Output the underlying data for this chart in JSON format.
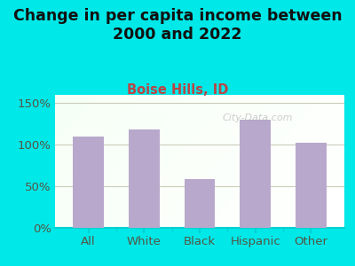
{
  "title": "Change in per capita income between\n2000 and 2022",
  "subtitle": "Boise Hills, ID",
  "categories": [
    "All",
    "White",
    "Black",
    "Hispanic",
    "Other"
  ],
  "values": [
    109,
    118,
    58,
    130,
    102
  ],
  "bar_color": "#b8a8cc",
  "title_fontsize": 12.5,
  "subtitle_fontsize": 10.5,
  "subtitle_color": "#bb4444",
  "title_color": "#111111",
  "tick_label_fontsize": 9.5,
  "ylim": [
    0,
    160
  ],
  "yticks": [
    0,
    50,
    100,
    150
  ],
  "ytick_labels": [
    "0%",
    "50%",
    "100%",
    "150%"
  ],
  "bg_outer": "#00e8e8",
  "bg_plot_top_left": "#d8edd8",
  "bg_plot_right": "#f0f0ee",
  "watermark": "City-Data.com",
  "grid_color": "#ccccbb",
  "axis_color": "#00d0d0"
}
